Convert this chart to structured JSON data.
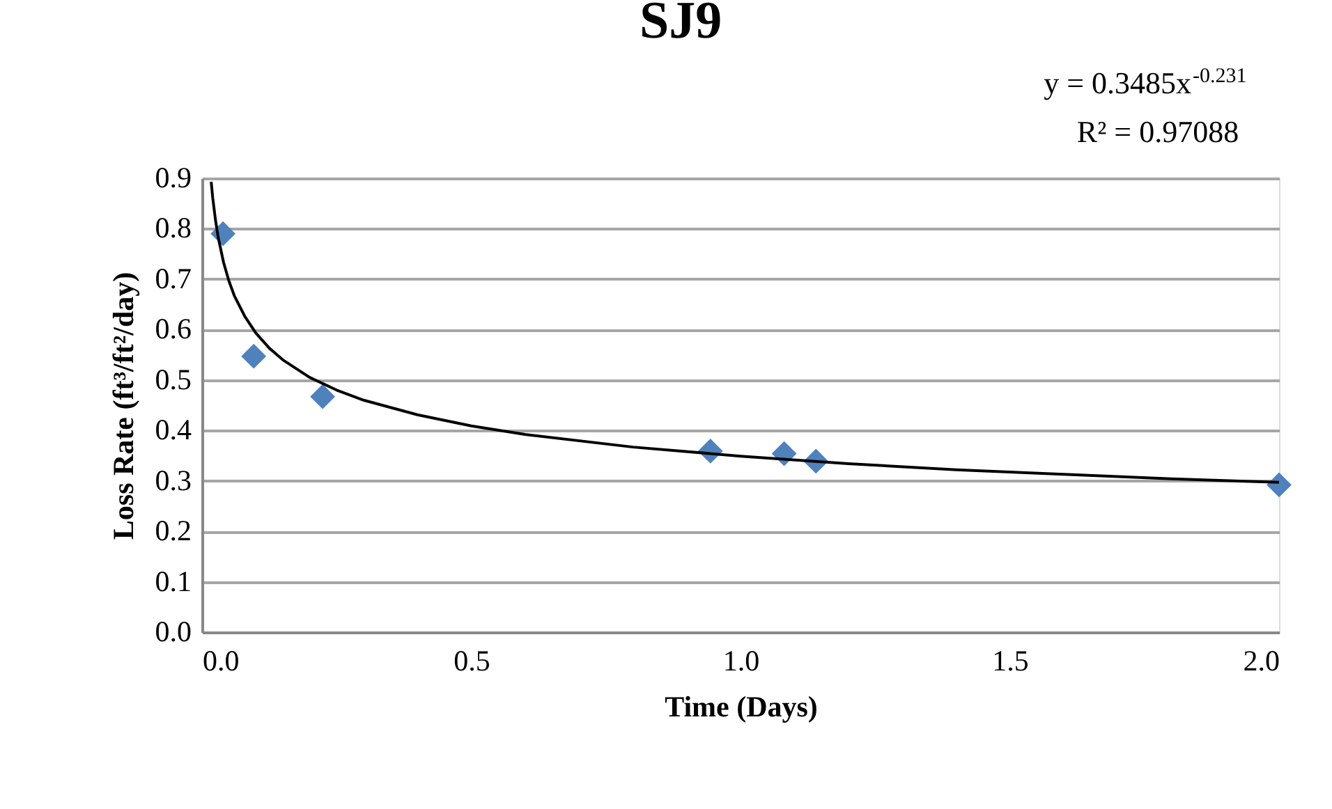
{
  "chart_data": {
    "type": "scatter",
    "title": "SJ9",
    "xlabel": "Time (Days)",
    "ylabel": "Loss Rate (ft³/ft²/day)",
    "series": [
      {
        "color": "#4f81bd",
        "marker": "diamond",
        "x": [
          0.039,
          0.096,
          0.224,
          0.944,
          1.081,
          1.14,
          2.0
        ],
        "values": [
          0.79,
          0.547,
          0.467,
          0.359,
          0.354,
          0.339,
          0.292
        ]
      },
      {
        "type": "line",
        "color": "#000000",
        "x": [
          0.017,
          0.02,
          0.025,
          0.03,
          0.04,
          0.05,
          0.06,
          0.08,
          0.1,
          0.125,
          0.15,
          0.2,
          0.25,
          0.3,
          0.4,
          0.5,
          0.6,
          0.8,
          1.0,
          1.2,
          1.4,
          1.6,
          1.8,
          2.0
        ],
        "values": [
          0.893,
          0.86,
          0.817,
          0.783,
          0.733,
          0.696,
          0.667,
          0.625,
          0.593,
          0.563,
          0.54,
          0.505,
          0.48,
          0.46,
          0.431,
          0.409,
          0.392,
          0.367,
          0.349,
          0.334,
          0.322,
          0.313,
          0.304,
          0.297
        ]
      }
    ],
    "annotations": [
      "y = 0.3485x$^{-0.231}$",
      "R² = 0.97088"
    ],
    "xlim": [
      0,
      2.0
    ],
    "xticks": [
      {
        "value": 0,
        "label": "0.0"
      },
      {
        "value": 0.5,
        "label": "0.5"
      },
      {
        "value": 1,
        "label": "1.0"
      },
      {
        "value": 1.5,
        "label": "1.5"
      },
      {
        "value": 2,
        "label": "2.0"
      }
    ],
    "ylim": [
      0,
      0.9
    ],
    "yticks": [
      {
        "value": 0,
        "label": "0.0"
      },
      0.1,
      0.2,
      0.3,
      0.4,
      0.5,
      0.6,
      0.7,
      0.8,
      0.9
    ],
    "grid": "y"
  }
}
